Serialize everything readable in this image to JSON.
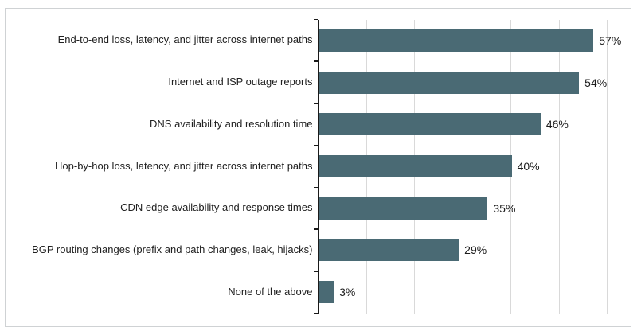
{
  "chart_data": {
    "type": "bar",
    "orientation": "horizontal",
    "title": "",
    "xlabel": "",
    "ylabel": "",
    "categories": [
      "End-to-end loss, latency, and jitter across internet paths",
      "Internet and ISP outage reports",
      "DNS availability and resolution time",
      "Hop-by-hop loss, latency, and jitter across internet paths",
      "CDN edge availability and response times",
      "BGP routing changes (prefix and path changes, leak, hijacks)",
      "None of the above"
    ],
    "values": [
      57,
      54,
      46,
      40,
      35,
      29,
      3
    ],
    "value_labels": [
      "57%",
      "54%",
      "46%",
      "40%",
      "35%",
      "29%",
      "3%"
    ],
    "xlim": [
      0,
      62
    ],
    "gridline_percents": [
      10,
      20,
      30,
      40,
      50,
      60
    ],
    "grid": true,
    "legend": "none",
    "bar_color": "#4a6a74",
    "grid_color": "#d9d9d9",
    "axis_color": "#1a1a1a",
    "text_color": "#212121",
    "frame_border_color": "#cfd2d4"
  }
}
